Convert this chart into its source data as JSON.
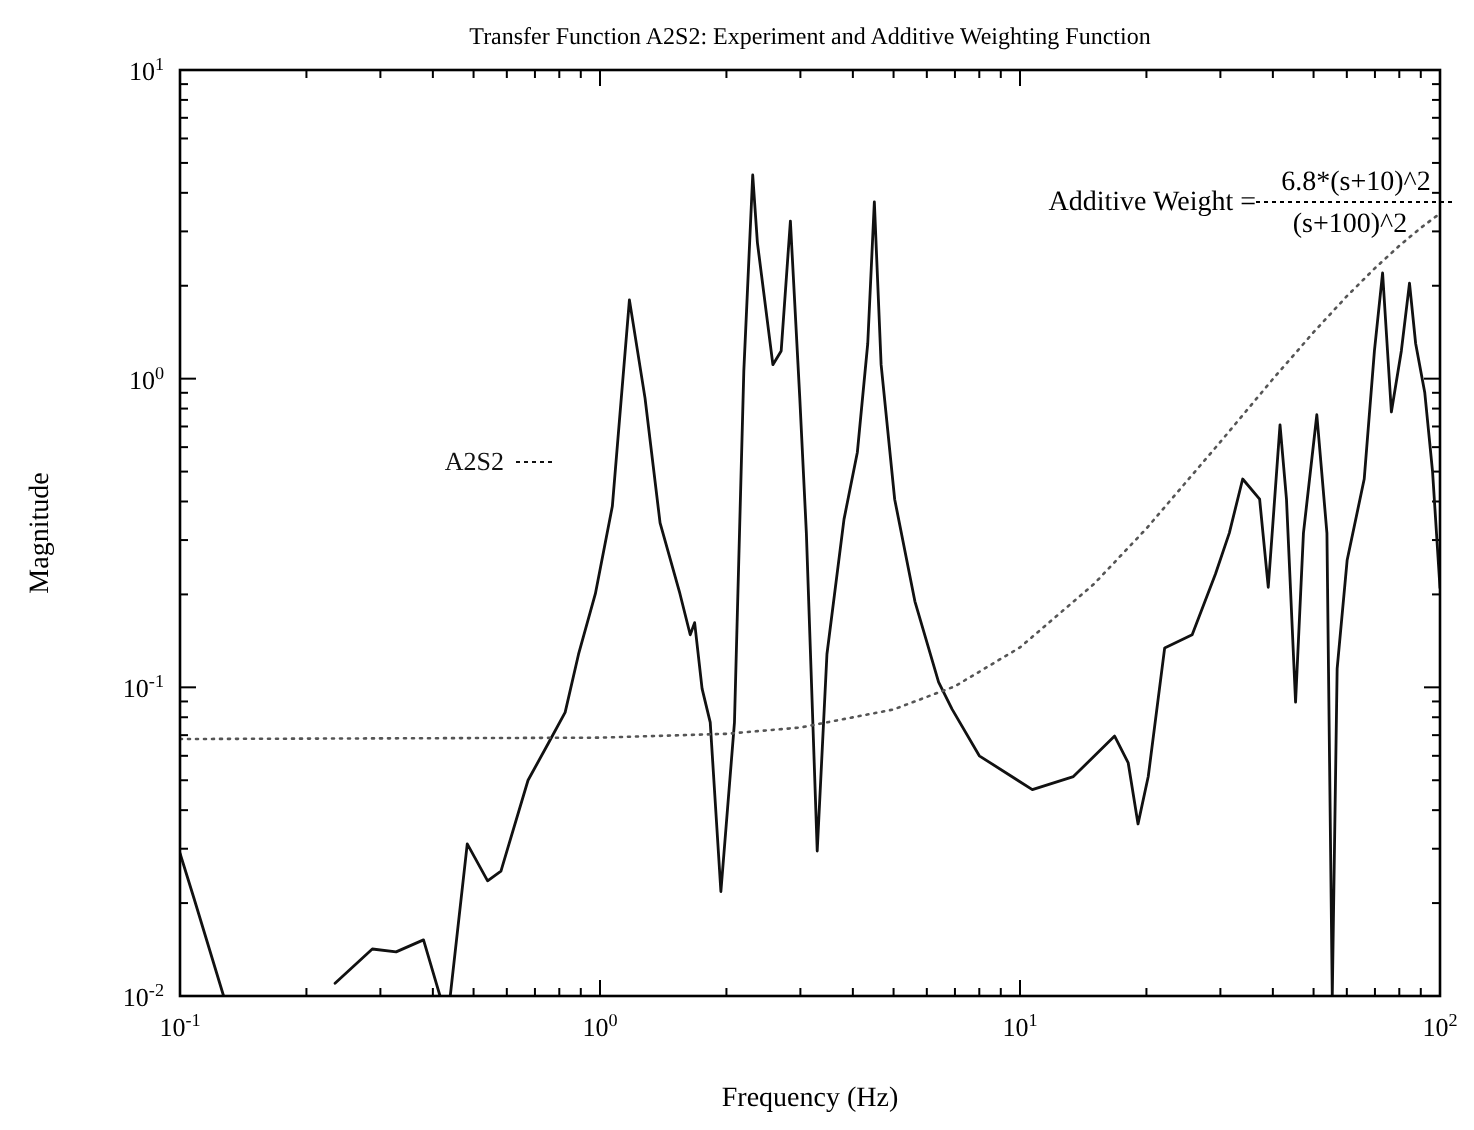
{
  "chart_data": {
    "type": "line",
    "title": "Transfer Function A2S2: Experiment and Additive Weighting Function",
    "xlabel": "Frequency (Hz)",
    "ylabel": "Magnitude",
    "log": "xy",
    "grid": false,
    "xlim": [
      0.1,
      100
    ],
    "ylim": [
      0.01,
      10
    ],
    "xticks": [
      {
        "value": 0.1,
        "label": "10$^{-1}$"
      },
      {
        "value": 0.2,
        "label": null
      },
      {
        "value": 0.3,
        "label": null
      },
      {
        "value": 0.4,
        "label": null
      },
      {
        "value": 0.5,
        "label": null
      },
      {
        "value": 0.6,
        "label": null
      },
      {
        "value": 0.7,
        "label": null
      },
      {
        "value": 0.8,
        "label": null
      },
      {
        "value": 0.9,
        "label": null
      },
      {
        "value": 1,
        "label": "10$^{0}$"
      },
      {
        "value": 2,
        "label": null
      },
      {
        "value": 3,
        "label": null
      },
      {
        "value": 4,
        "label": null
      },
      {
        "value": 5,
        "label": null
      },
      {
        "value": 6,
        "label": null
      },
      {
        "value": 7,
        "label": null
      },
      {
        "value": 8,
        "label": null
      },
      {
        "value": 9,
        "label": null
      },
      {
        "value": 10,
        "label": "10$^{1}$"
      },
      {
        "value": 20,
        "label": null
      },
      {
        "value": 30,
        "label": null
      },
      {
        "value": 40,
        "label": null
      },
      {
        "value": 50,
        "label": null
      },
      {
        "value": 60,
        "label": null
      },
      {
        "value": 70,
        "label": null
      },
      {
        "value": 80,
        "label": null
      },
      {
        "value": 90,
        "label": null
      },
      {
        "value": 100,
        "label": "10$^{2}$"
      }
    ],
    "yticks": [
      {
        "value": 0.01,
        "label": "10$^{-2}$"
      },
      {
        "value": 0.02,
        "label": null
      },
      {
        "value": 0.03,
        "label": null
      },
      {
        "value": 0.04,
        "label": null
      },
      {
        "value": 0.05,
        "label": null
      },
      {
        "value": 0.06,
        "label": null
      },
      {
        "value": 0.07,
        "label": null
      },
      {
        "value": 0.08,
        "label": null
      },
      {
        "value": 0.09,
        "label": null
      },
      {
        "value": 0.1,
        "label": "10$^{-1}$"
      },
      {
        "value": 0.2,
        "label": null
      },
      {
        "value": 0.3,
        "label": null
      },
      {
        "value": 0.4,
        "label": null
      },
      {
        "value": 0.5,
        "label": null
      },
      {
        "value": 0.6,
        "label": null
      },
      {
        "value": 0.7,
        "label": null
      },
      {
        "value": 0.8,
        "label": null
      },
      {
        "value": 0.9,
        "label": null
      },
      {
        "value": 1,
        "label": "10$^{0}$"
      },
      {
        "value": 2,
        "label": null
      },
      {
        "value": 3,
        "label": null
      },
      {
        "value": 4,
        "label": null
      },
      {
        "value": 5,
        "label": null
      },
      {
        "value": 6,
        "label": null
      },
      {
        "value": 7,
        "label": null
      },
      {
        "value": 8,
        "label": null
      },
      {
        "value": 9,
        "label": null
      },
      {
        "value": 10,
        "label": "10$^{1}$"
      }
    ],
    "annotations": [
      "Additive Weight =",
      "6.8*(s+10)^2",
      "(s+100)^2"
    ],
    "series": [
      {
        "name": "A2S2",
        "color": "#111111",
        "line_style": "solid",
        "x": [
          0.1,
          0.108,
          0.127,
          0.2,
          0.234,
          0.287,
          0.327,
          0.38,
          0.416,
          0.43,
          0.44,
          0.483,
          0.54,
          0.581,
          0.674,
          0.754,
          0.826,
          0.889,
          0.975,
          1.07,
          1.175,
          1.28,
          1.39,
          1.55,
          1.64,
          1.68,
          1.75,
          1.83,
          1.94,
          2.09,
          2.2,
          2.31,
          2.37,
          2.58,
          2.7,
          2.84,
          2.99,
          3.1,
          3.29,
          3.47,
          3.81,
          4.1,
          4.34,
          4.5,
          4.67,
          5.03,
          5.62,
          6.4,
          6.89,
          8.0,
          10.7,
          13.4,
          16.8,
          18.1,
          19.1,
          20.2,
          22.1,
          25.7,
          29.2,
          31.5,
          33.9,
          37.2,
          39.0,
          41.6,
          43.1,
          45.3,
          47.3,
          50.9,
          53.8,
          55.4,
          56.9,
          60.1,
          66,
          69.8,
          73,
          76.6,
          80.9,
          84.6,
          87.5,
          92,
          96,
          100
        ],
        "values": [
          0.029,
          0.0207,
          0.01,
          null,
          0.011,
          0.0142,
          0.0139,
          0.0152,
          0.01,
          null,
          0.01,
          0.0311,
          0.0236,
          0.0254,
          0.05,
          0.066,
          0.083,
          0.128,
          0.201,
          0.386,
          1.8,
          0.865,
          0.341,
          0.201,
          0.148,
          0.162,
          0.099,
          0.077,
          0.0218,
          0.077,
          1.06,
          4.57,
          2.76,
          1.11,
          1.23,
          3.24,
          0.865,
          0.316,
          0.0295,
          0.128,
          0.35,
          0.578,
          1.3,
          3.74,
          1.11,
          0.407,
          0.19,
          0.104,
          0.085,
          0.06,
          0.0466,
          0.0514,
          0.0695,
          0.0569,
          0.0361,
          0.0514,
          0.134,
          0.148,
          0.233,
          0.316,
          0.473,
          0.407,
          0.211,
          0.708,
          0.407,
          0.0895,
          0.316,
          0.764,
          0.316,
          0.01,
          0.115,
          0.258,
          0.473,
          1.23,
          2.2,
          0.78,
          1.23,
          2.04,
          1.3,
          0.9,
          0.5,
          0.21
        ]
      },
      {
        "color": "#555555",
        "line_style": "dotted",
        "x": [
          0.1,
          1,
          2,
          3,
          5,
          7,
          10,
          15,
          20,
          30,
          40,
          50,
          60,
          70,
          80,
          90,
          100
        ],
        "values": [
          0.068,
          0.0687,
          0.0707,
          0.0741,
          0.0848,
          0.1008,
          0.1347,
          0.2161,
          0.327,
          0.624,
          0.997,
          1.414,
          1.85,
          2.28,
          2.695,
          3.08,
          3.43
        ]
      }
    ]
  }
}
